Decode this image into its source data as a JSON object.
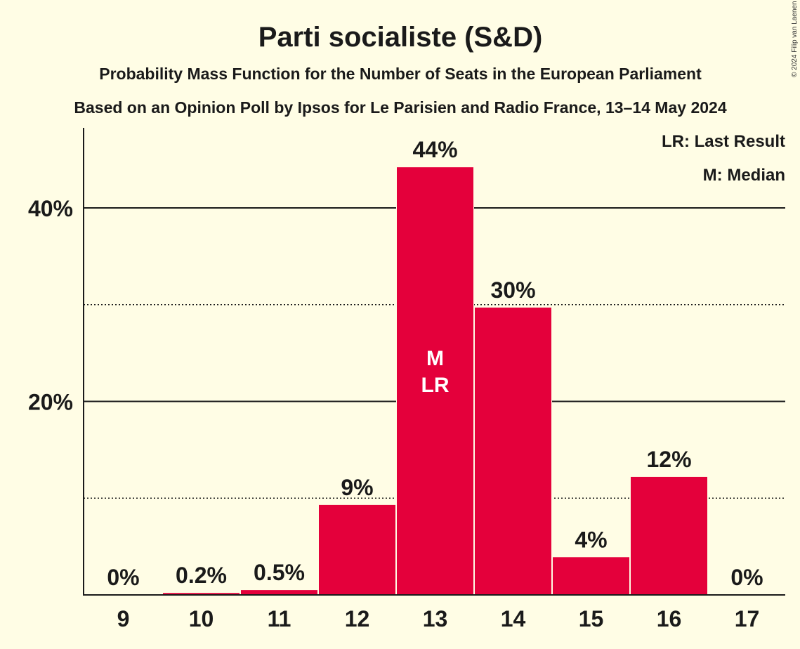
{
  "chart_data": {
    "type": "bar",
    "title": "Parti socialiste (S&D)",
    "subtitle": "Probability Mass Function for the Number of Seats in the European Parliament",
    "subtitle2": "Based on an Opinion Poll by Ipsos for Le Parisien and Radio France, 13–14 May 2024",
    "copyright": "© 2024 Filip van Laenen",
    "legend": [
      "LR: Last Result",
      "M: Median"
    ],
    "categories": [
      "9",
      "10",
      "11",
      "12",
      "13",
      "14",
      "15",
      "16",
      "17"
    ],
    "values": [
      0,
      0.2,
      0.5,
      9.3,
      44.2,
      29.7,
      3.9,
      12.2,
      0
    ],
    "data_labels": [
      "0%",
      "0.2%",
      "0.5%",
      "9%",
      "44%",
      "30%",
      "4%",
      "12%",
      "0%"
    ],
    "bar_markers": {
      "13": [
        "M",
        "LR"
      ]
    },
    "ylim": [
      0,
      48
    ],
    "yticks": [
      {
        "value": 20,
        "label": "20%",
        "style": "solid"
      },
      {
        "value": 40,
        "label": "40%",
        "style": "solid"
      }
    ],
    "ygrid_dotted": [
      10,
      30
    ],
    "bar_color": "#e4003b"
  }
}
